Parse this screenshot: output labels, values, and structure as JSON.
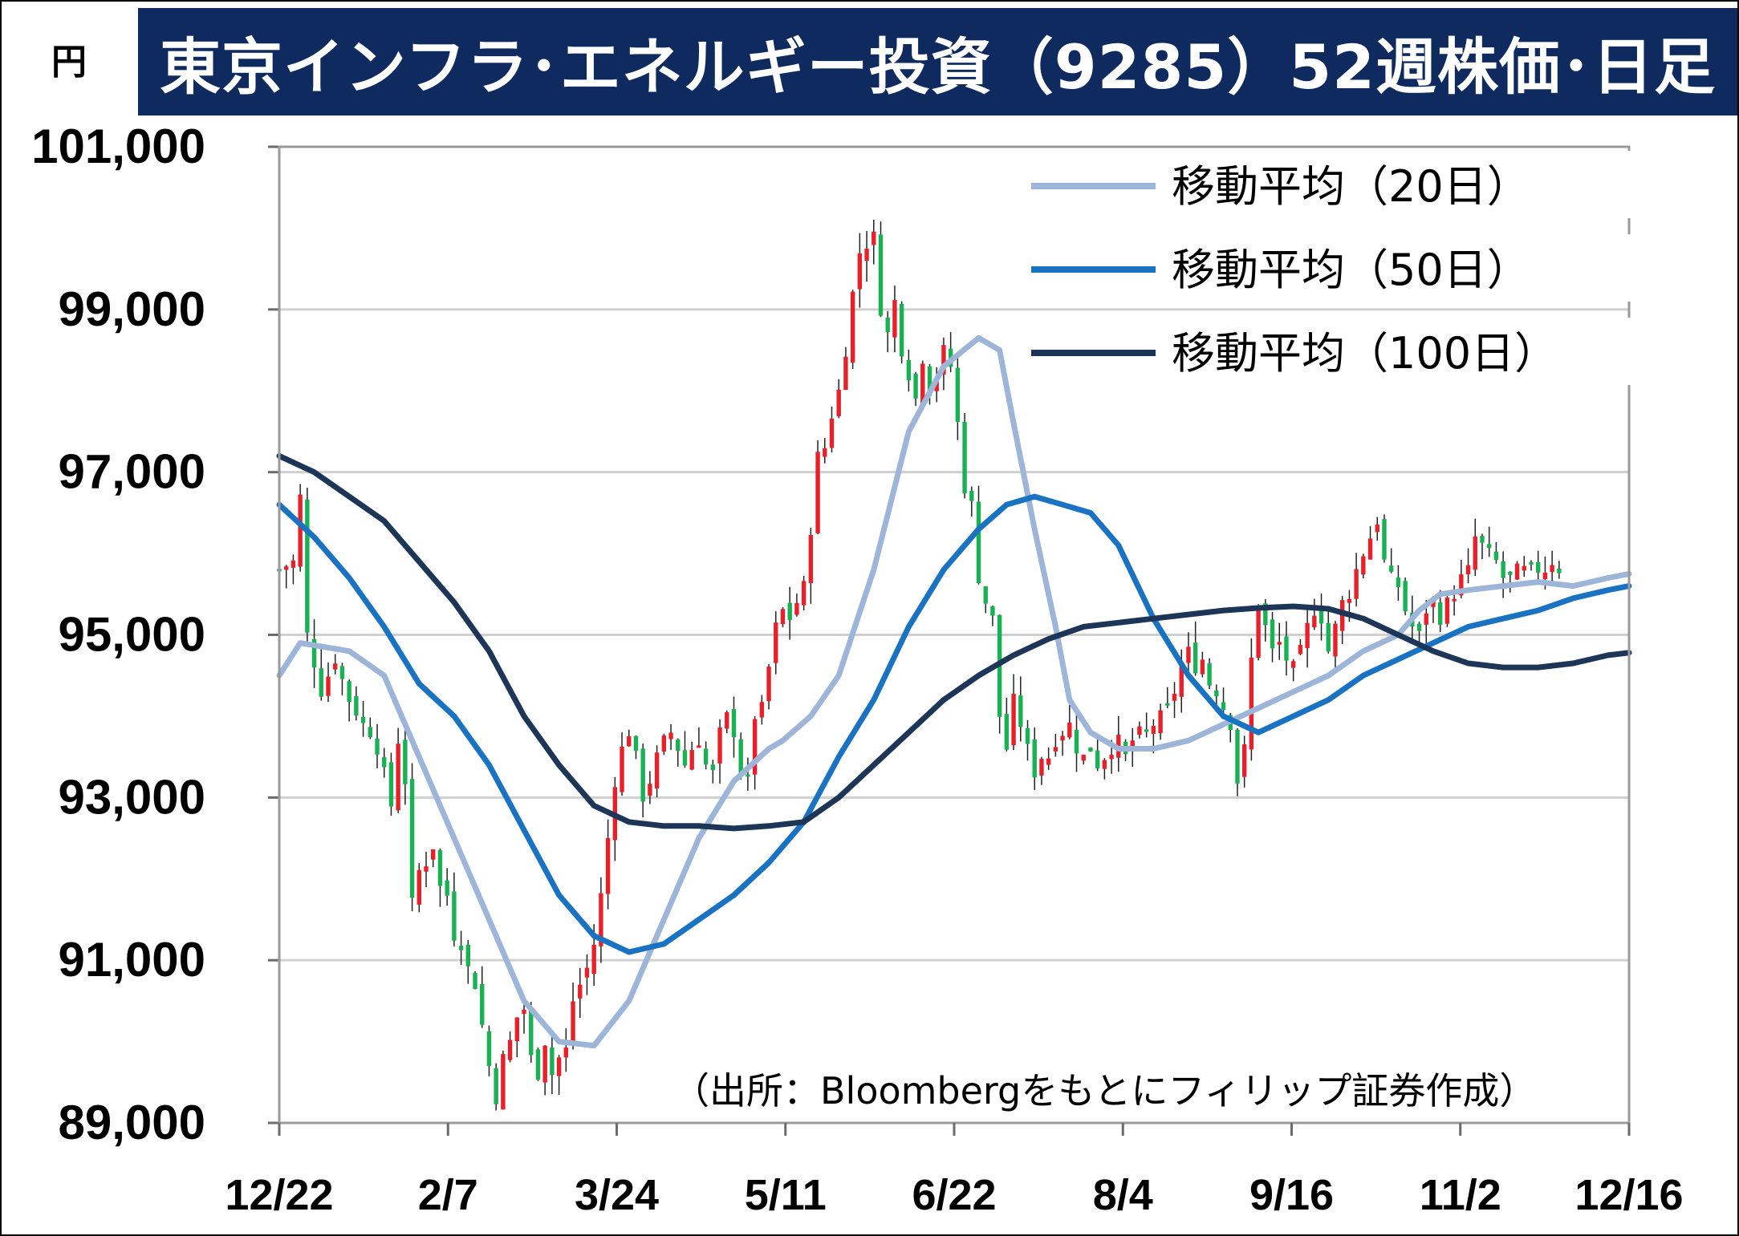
{
  "header": {
    "unit": "円",
    "title": "東京インフラ･エネルギー投資（9285）52週株価･日足"
  },
  "source_note": "（出所：Bloombergをもとにフィリップ証券作成）",
  "colors": {
    "title_bg": "#0e2a5e",
    "up_candle": "#e8202a",
    "down_candle": "#1ab154",
    "ma20": "#9db5d8",
    "ma50": "#1a73c2",
    "ma100": "#1d3557",
    "grid": "#d0d0d0"
  },
  "chart_data": {
    "type": "candlestick",
    "title": "東京インフラ･エネルギー投資（9285）52週株価･日足",
    "ylabel": "円",
    "ylim": [
      89000,
      101000
    ],
    "y_ticks": [
      "101,000",
      "99,000",
      "97,000",
      "95,000",
      "93,000",
      "91,000",
      "89,000"
    ],
    "y_tick_values": [
      101000,
      99000,
      97000,
      95000,
      93000,
      91000,
      89000
    ],
    "x_ticks": [
      "12/22",
      "2/7",
      "3/24",
      "5/11",
      "6/22",
      "8/4",
      "9/16",
      "11/2",
      "12/16"
    ],
    "grid": true,
    "legend_position": "top-right",
    "legend": [
      {
        "label": "移動平均（20日）",
        "key": "ma20",
        "color": "#9db5d8"
      },
      {
        "label": "移動平均（50日）",
        "key": "ma50",
        "color": "#1a73c2"
      },
      {
        "label": "移動平均（100日）",
        "key": "ma100",
        "color": "#1d3557"
      }
    ],
    "series": [
      {
        "name": "移動平均（20日）",
        "key": "ma20",
        "values": [
          [
            0,
            94500
          ],
          [
            3,
            94900
          ],
          [
            10,
            94800
          ],
          [
            15,
            94500
          ],
          [
            20,
            93500
          ],
          [
            25,
            92500
          ],
          [
            30,
            91500
          ],
          [
            35,
            90500
          ],
          [
            40,
            90000
          ],
          [
            45,
            89950
          ],
          [
            50,
            90500
          ],
          [
            55,
            91500
          ],
          [
            60,
            92500
          ],
          [
            65,
            93200
          ],
          [
            70,
            93600
          ],
          [
            72,
            93700
          ],
          [
            76,
            94000
          ],
          [
            80,
            94500
          ],
          [
            85,
            95800
          ],
          [
            90,
            97500
          ],
          [
            95,
            98300
          ],
          [
            100,
            98650
          ],
          [
            103,
            98500
          ],
          [
            105,
            97600
          ],
          [
            108,
            96300
          ],
          [
            111,
            95100
          ],
          [
            113,
            94200
          ],
          [
            116,
            93800
          ],
          [
            120,
            93600
          ],
          [
            125,
            93600
          ],
          [
            130,
            93700
          ],
          [
            135,
            93900
          ],
          [
            140,
            94100
          ],
          [
            145,
            94300
          ],
          [
            150,
            94500
          ],
          [
            155,
            94800
          ],
          [
            160,
            95000
          ],
          [
            163,
            95300
          ],
          [
            166,
            95500
          ],
          [
            170,
            95550
          ],
          [
            175,
            95600
          ],
          [
            180,
            95650
          ],
          [
            185,
            95600
          ],
          [
            190,
            95700
          ],
          [
            193,
            95750
          ]
        ]
      },
      {
        "name": "移動平均（50日）",
        "key": "ma50",
        "values": [
          [
            0,
            96600
          ],
          [
            5,
            96200
          ],
          [
            10,
            95700
          ],
          [
            15,
            95100
          ],
          [
            20,
            94400
          ],
          [
            25,
            94000
          ],
          [
            30,
            93400
          ],
          [
            35,
            92600
          ],
          [
            40,
            91800
          ],
          [
            45,
            91300
          ],
          [
            50,
            91100
          ],
          [
            55,
            91200
          ],
          [
            60,
            91500
          ],
          [
            65,
            91800
          ],
          [
            70,
            92200
          ],
          [
            75,
            92700
          ],
          [
            80,
            93500
          ],
          [
            85,
            94200
          ],
          [
            90,
            95100
          ],
          [
            95,
            95800
          ],
          [
            100,
            96300
          ],
          [
            104,
            96600
          ],
          [
            108,
            96700
          ],
          [
            112,
            96600
          ],
          [
            116,
            96500
          ],
          [
            120,
            96100
          ],
          [
            125,
            95200
          ],
          [
            130,
            94500
          ],
          [
            135,
            94000
          ],
          [
            140,
            93800
          ],
          [
            145,
            94000
          ],
          [
            150,
            94200
          ],
          [
            155,
            94500
          ],
          [
            160,
            94700
          ],
          [
            165,
            94900
          ],
          [
            170,
            95100
          ],
          [
            175,
            95200
          ],
          [
            180,
            95300
          ],
          [
            185,
            95450
          ],
          [
            190,
            95550
          ],
          [
            193,
            95600
          ]
        ]
      },
      {
        "name": "移動平均（100日）",
        "key": "ma100",
        "values": [
          [
            0,
            97200
          ],
          [
            5,
            97000
          ],
          [
            10,
            96700
          ],
          [
            15,
            96400
          ],
          [
            20,
            95900
          ],
          [
            25,
            95400
          ],
          [
            30,
            94800
          ],
          [
            35,
            94000
          ],
          [
            40,
            93400
          ],
          [
            45,
            92900
          ],
          [
            50,
            92700
          ],
          [
            55,
            92650
          ],
          [
            60,
            92650
          ],
          [
            65,
            92620
          ],
          [
            70,
            92650
          ],
          [
            75,
            92700
          ],
          [
            80,
            93000
          ],
          [
            85,
            93400
          ],
          [
            90,
            93800
          ],
          [
            95,
            94200
          ],
          [
            100,
            94500
          ],
          [
            105,
            94750
          ],
          [
            110,
            94950
          ],
          [
            115,
            95100
          ],
          [
            120,
            95150
          ],
          [
            125,
            95200
          ],
          [
            130,
            95250
          ],
          [
            135,
            95300
          ],
          [
            140,
            95330
          ],
          [
            145,
            95350
          ],
          [
            150,
            95320
          ],
          [
            155,
            95200
          ],
          [
            160,
            95000
          ],
          [
            165,
            94800
          ],
          [
            170,
            94650
          ],
          [
            175,
            94600
          ],
          [
            180,
            94600
          ],
          [
            185,
            94650
          ],
          [
            190,
            94750
          ],
          [
            193,
            94780
          ]
        ]
      }
    ],
    "price_anchors": [
      [
        0,
        95800
      ],
      [
        2,
        95900
      ],
      [
        3,
        96700
      ],
      [
        4,
        95000
      ],
      [
        6,
        94300
      ],
      [
        8,
        94700
      ],
      [
        10,
        94200
      ],
      [
        12,
        93900
      ],
      [
        13,
        93800
      ],
      [
        14,
        93600
      ],
      [
        15,
        93300
      ],
      [
        16,
        92900
      ],
      [
        17,
        93700
      ],
      [
        18,
        93200
      ],
      [
        19,
        91700
      ],
      [
        20,
        92100
      ],
      [
        21,
        92200
      ],
      [
        22,
        92400
      ],
      [
        23,
        91900
      ],
      [
        24,
        91800
      ],
      [
        25,
        91300
      ],
      [
        26,
        91200
      ],
      [
        27,
        90900
      ],
      [
        28,
        90700
      ],
      [
        29,
        90200
      ],
      [
        30,
        89700
      ],
      [
        31,
        89300
      ],
      [
        32,
        89800
      ],
      [
        33,
        90000
      ],
      [
        34,
        90300
      ],
      [
        35,
        90400
      ],
      [
        36,
        89800
      ],
      [
        37,
        89600
      ],
      [
        38,
        90000
      ],
      [
        39,
        89600
      ],
      [
        40,
        89800
      ],
      [
        41,
        89900
      ],
      [
        42,
        90500
      ],
      [
        43,
        90700
      ],
      [
        44,
        90900
      ],
      [
        45,
        91200
      ],
      [
        46,
        91800
      ],
      [
        47,
        92500
      ],
      [
        48,
        93200
      ],
      [
        49,
        93600
      ],
      [
        50,
        93800
      ],
      [
        51,
        93500
      ],
      [
        52,
        93000
      ],
      [
        53,
        93200
      ],
      [
        54,
        93500
      ],
      [
        55,
        93700
      ],
      [
        56,
        93800
      ],
      [
        57,
        93600
      ],
      [
        58,
        93400
      ],
      [
        59,
        93600
      ],
      [
        60,
        93700
      ],
      [
        61,
        93400
      ],
      [
        62,
        93300
      ],
      [
        63,
        93800
      ],
      [
        64,
        94000
      ],
      [
        65,
        93800
      ],
      [
        66,
        93300
      ],
      [
        67,
        93200
      ],
      [
        68,
        94000
      ],
      [
        69,
        94100
      ],
      [
        70,
        94600
      ],
      [
        71,
        95100
      ],
      [
        72,
        95300
      ],
      [
        73,
        95200
      ],
      [
        74,
        95400
      ],
      [
        75,
        95600
      ],
      [
        76,
        96300
      ],
      [
        77,
        97200
      ],
      [
        78,
        97300
      ],
      [
        79,
        97700
      ],
      [
        80,
        98000
      ],
      [
        81,
        98500
      ],
      [
        82,
        99200
      ],
      [
        83,
        99700
      ],
      [
        84,
        99800
      ],
      [
        85,
        99900
      ],
      [
        86,
        99000
      ],
      [
        87,
        98700
      ],
      [
        88,
        99100
      ],
      [
        89,
        98500
      ],
      [
        90,
        98200
      ],
      [
        91,
        97900
      ],
      [
        92,
        98400
      ],
      [
        93,
        98000
      ],
      [
        94,
        98200
      ],
      [
        95,
        98500
      ],
      [
        96,
        98300
      ],
      [
        97,
        97600
      ],
      [
        98,
        96800
      ],
      [
        99,
        96600
      ],
      [
        100,
        95700
      ],
      [
        101,
        95400
      ],
      [
        102,
        95200
      ],
      [
        103,
        94000
      ],
      [
        104,
        93600
      ],
      [
        105,
        94200
      ],
      [
        106,
        93900
      ],
      [
        107,
        93600
      ],
      [
        108,
        93300
      ],
      [
        109,
        93500
      ],
      [
        110,
        93500
      ],
      [
        111,
        93700
      ],
      [
        112,
        93800
      ],
      [
        113,
        93900
      ],
      [
        114,
        93600
      ],
      [
        115,
        93500
      ],
      [
        116,
        93600
      ],
      [
        117,
        93400
      ],
      [
        118,
        93500
      ],
      [
        119,
        93600
      ],
      [
        120,
        93700
      ],
      [
        121,
        93500
      ],
      [
        122,
        93700
      ],
      [
        123,
        93800
      ],
      [
        124,
        93800
      ],
      [
        125,
        93900
      ],
      [
        126,
        94000
      ],
      [
        127,
        94100
      ],
      [
        128,
        94300
      ],
      [
        129,
        94600
      ],
      [
        130,
        94800
      ],
      [
        131,
        94600
      ],
      [
        132,
        94700
      ],
      [
        133,
        94400
      ],
      [
        134,
        94300
      ],
      [
        135,
        94100
      ],
      [
        136,
        93900
      ],
      [
        137,
        93200
      ],
      [
        138,
        93600
      ],
      [
        139,
        94700
      ],
      [
        140,
        95400
      ],
      [
        141,
        95100
      ],
      [
        142,
        94800
      ],
      [
        143,
        94900
      ],
      [
        144,
        94700
      ],
      [
        145,
        94600
      ],
      [
        146,
        94800
      ],
      [
        147,
        95100
      ],
      [
        148,
        95300
      ],
      [
        149,
        95200
      ],
      [
        150,
        94800
      ],
      [
        151,
        95100
      ],
      [
        152,
        95400
      ],
      [
        153,
        95500
      ],
      [
        154,
        95800
      ],
      [
        155,
        96000
      ],
      [
        156,
        96200
      ],
      [
        157,
        96400
      ],
      [
        158,
        95900
      ],
      [
        159,
        95700
      ],
      [
        160,
        95600
      ],
      [
        161,
        95300
      ],
      [
        162,
        95100
      ],
      [
        163,
        95000
      ],
      [
        164,
        95300
      ],
      [
        165,
        95400
      ],
      [
        166,
        95200
      ],
      [
        167,
        95400
      ],
      [
        168,
        95500
      ],
      [
        169,
        95700
      ],
      [
        170,
        95800
      ],
      [
        171,
        96200
      ],
      [
        172,
        96100
      ],
      [
        173,
        96000
      ],
      [
        174,
        95900
      ],
      [
        175,
        95700
      ],
      [
        176,
        95700
      ],
      [
        177,
        95800
      ],
      [
        178,
        95800
      ],
      [
        179,
        95800
      ],
      [
        180,
        95800
      ],
      [
        181,
        95800
      ],
      [
        182,
        95900
      ],
      [
        183,
        95800
      ]
    ]
  }
}
